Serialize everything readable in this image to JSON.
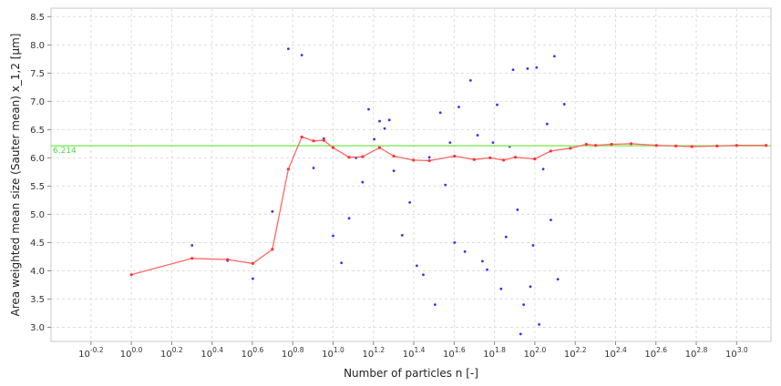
{
  "chart_data": {
    "type": "scatter",
    "xlabel": "Number of particles n [-]",
    "ylabel": "Area weighted mean size (Sauter mean) x_1,2 [µm]",
    "x_scale": "log10",
    "xlim": [
      0.4,
      1480
    ],
    "ylim": [
      2.75,
      8.65
    ],
    "x_ticks": [
      {
        "base": "10",
        "exp": "-0.2",
        "value": 0.631
      },
      {
        "base": "10",
        "exp": "0.0",
        "value": 1
      },
      {
        "base": "10",
        "exp": "0.2",
        "value": 1.585
      },
      {
        "base": "10",
        "exp": "0.4",
        "value": 2.512
      },
      {
        "base": "10",
        "exp": "0.6",
        "value": 3.981
      },
      {
        "base": "10",
        "exp": "0.8",
        "value": 6.31
      },
      {
        "base": "10",
        "exp": "1.0",
        "value": 10
      },
      {
        "base": "10",
        "exp": "1.2",
        "value": 15.85
      },
      {
        "base": "10",
        "exp": "1.4",
        "value": 25.12
      },
      {
        "base": "10",
        "exp": "1.6",
        "value": 39.81
      },
      {
        "base": "10",
        "exp": "1.8",
        "value": 63.1
      },
      {
        "base": "10",
        "exp": "2.0",
        "value": 100
      },
      {
        "base": "10",
        "exp": "2.2",
        "value": 158.5
      },
      {
        "base": "10",
        "exp": "2.4",
        "value": 251.2
      },
      {
        "base": "10",
        "exp": "2.6",
        "value": 398.1
      },
      {
        "base": "10",
        "exp": "2.8",
        "value": 631
      },
      {
        "base": "10",
        "exp": "3.0",
        "value": 1000
      }
    ],
    "y_ticks": [
      "3.0",
      "3.5",
      "4.0",
      "4.5",
      "5.0",
      "5.5",
      "6.0",
      "6.5",
      "7.0",
      "7.5",
      "8.0",
      "8.5"
    ],
    "grid": true,
    "reference_line": {
      "value": 6.214,
      "label": "6.214",
      "color": "#88ee66"
    },
    "series": [
      {
        "kind": "running-mean",
        "color": "#ff6666",
        "x": [
          1,
          2,
          3,
          4,
          5,
          6,
          7,
          8,
          9,
          10,
          12,
          14,
          17,
          20,
          25,
          30,
          40,
          50,
          60,
          70,
          80,
          100,
          120,
          150,
          180,
          200,
          240,
          300,
          400,
          500,
          600,
          800,
          1000,
          1400
        ],
        "y": [
          3.93,
          4.22,
          4.2,
          4.13,
          4.38,
          5.8,
          6.37,
          6.3,
          6.31,
          6.18,
          6.01,
          6.02,
          6.18,
          6.03,
          5.96,
          5.95,
          6.03,
          5.97,
          6.0,
          5.96,
          6.01,
          5.98,
          6.12,
          6.17,
          6.24,
          6.22,
          6.24,
          6.25,
          6.22,
          6.21,
          6.2,
          6.21,
          6.22,
          6.22
        ]
      },
      {
        "kind": "individual-particles",
        "color": "#3333ee",
        "x": [
          2,
          3,
          4,
          5,
          6,
          7,
          8,
          9,
          10,
          11,
          12,
          13,
          14,
          15,
          16,
          17,
          18,
          19,
          20,
          22,
          24,
          26,
          28,
          30,
          32,
          34,
          36,
          38,
          40,
          42,
          45,
          48,
          52,
          55,
          58,
          62,
          65,
          68,
          72,
          75,
          78,
          82,
          85,
          88,
          92,
          95,
          98,
          102,
          105,
          110,
          115,
          120,
          125,
          130,
          140
        ],
        "y": [
          4.45,
          4.18,
          3.86,
          5.05,
          7.93,
          7.82,
          5.82,
          6.34,
          4.62,
          4.14,
          4.93,
          6.0,
          5.57,
          6.86,
          6.33,
          6.65,
          6.52,
          6.67,
          5.77,
          4.63,
          5.21,
          4.09,
          3.93,
          6.01,
          3.4,
          6.8,
          5.52,
          6.27,
          4.5,
          6.9,
          4.34,
          7.37,
          6.4,
          4.17,
          4.02,
          6.27,
          6.94,
          3.68,
          4.6,
          6.2,
          7.56,
          5.08,
          2.88,
          3.4,
          7.58,
          3.72,
          4.45,
          7.6,
          3.05,
          5.8,
          6.6,
          4.9,
          7.8,
          3.85,
          6.95
        ]
      }
    ]
  }
}
